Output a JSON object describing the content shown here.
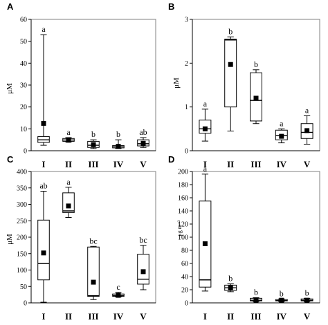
{
  "chart_data": [
    {
      "type": "boxplot",
      "panel": "A",
      "ylabel": "μM",
      "ylim": [
        0,
        60
      ],
      "yticks": [
        0,
        10,
        20,
        30,
        40,
        50,
        60
      ],
      "categories": [
        "I",
        "II",
        "III",
        "IV",
        "V"
      ],
      "boxes": [
        {
          "whisker_low": 2.5,
          "q1": 3.8,
          "median": 5.0,
          "q3": 6.5,
          "whisker_high": 53,
          "mean": 12.5,
          "letter": "a"
        },
        {
          "whisker_low": 4.0,
          "q1": 4.3,
          "median": 4.9,
          "q3": 5.6,
          "whisker_high": 6.0,
          "mean": 4.8,
          "letter": "a"
        },
        {
          "whisker_low": 1.0,
          "q1": 1.5,
          "median": 2.5,
          "q3": 4.3,
          "whisker_high": 5.0,
          "mean": 2.8,
          "letter": "b"
        },
        {
          "whisker_low": 1.0,
          "q1": 1.3,
          "median": 1.8,
          "q3": 2.4,
          "whisker_high": 5.0,
          "mean": 2.0,
          "letter": "b"
        },
        {
          "whisker_low": 1.5,
          "q1": 2.2,
          "median": 3.2,
          "q3": 5.0,
          "whisker_high": 6.0,
          "mean": 3.4,
          "letter": "ab"
        }
      ]
    },
    {
      "type": "boxplot",
      "panel": "B",
      "ylabel": "μM",
      "ylim": [
        0,
        3
      ],
      "yticks": [
        0,
        1,
        2,
        3
      ],
      "categories": [
        "I",
        "II",
        "III",
        "IV",
        "V"
      ],
      "boxes": [
        {
          "whisker_low": 0.22,
          "q1": 0.4,
          "median": 0.5,
          "q3": 0.7,
          "whisker_high": 0.95,
          "mean": 0.5,
          "letter": "a"
        },
        {
          "whisker_low": 0.45,
          "q1": 1.0,
          "median": 2.53,
          "q3": 2.55,
          "whisker_high": 2.6,
          "mean": 1.97,
          "letter": "b"
        },
        {
          "whisker_low": 0.62,
          "q1": 0.68,
          "median": 1.15,
          "q3": 1.78,
          "whisker_high": 1.85,
          "mean": 1.2,
          "letter": "b"
        },
        {
          "whisker_low": 0.18,
          "q1": 0.25,
          "median": 0.35,
          "q3": 0.47,
          "whisker_high": 0.5,
          "mean": 0.33,
          "letter": "a"
        },
        {
          "whisker_low": 0.15,
          "q1": 0.28,
          "median": 0.42,
          "q3": 0.62,
          "whisker_high": 0.8,
          "mean": 0.46,
          "letter": "a"
        }
      ]
    },
    {
      "type": "boxplot",
      "panel": "C",
      "ylabel": "μM",
      "ylim": [
        0,
        400
      ],
      "yticks": [
        0,
        50,
        100,
        150,
        200,
        250,
        300,
        350,
        400
      ],
      "categories": [
        "I",
        "II",
        "III",
        "IV",
        "V"
      ],
      "boxes": [
        {
          "whisker_low": 2,
          "q1": 70,
          "median": 120,
          "q3": 252,
          "whisker_high": 340,
          "mean": 152,
          "letter": "ab"
        },
        {
          "whisker_low": 260,
          "q1": 275,
          "median": 280,
          "q3": 335,
          "whisker_high": 352,
          "mean": 295,
          "letter": "a"
        },
        {
          "whisker_low": 10,
          "q1": 20,
          "median": 22,
          "q3": 170,
          "whisker_high": 172,
          "mean": 63,
          "letter": "bc"
        },
        {
          "whisker_low": 18,
          "q1": 20,
          "median": 22,
          "q3": 27,
          "whisker_high": 32,
          "mean": 23,
          "letter": "c"
        },
        {
          "whisker_low": 40,
          "q1": 57,
          "median": 72,
          "q3": 148,
          "whisker_high": 175,
          "mean": 95,
          "letter": "bc"
        }
      ]
    },
    {
      "type": "boxplot",
      "panel": "D",
      "ylabel": "μg m⁻³",
      "ylim": [
        0,
        200
      ],
      "yticks": [
        0,
        20,
        40,
        60,
        80,
        100,
        120,
        140,
        160,
        180,
        200
      ],
      "categories": [
        "I",
        "II",
        "III",
        "IV",
        "V"
      ],
      "boxes": [
        {
          "whisker_low": 18,
          "q1": 24,
          "median": 35,
          "q3": 155,
          "whisker_high": 196,
          "mean": 90,
          "letter": "a"
        },
        {
          "whisker_low": 17,
          "q1": 19,
          "median": 23,
          "q3": 27,
          "whisker_high": 29,
          "mean": 23,
          "letter": "b"
        },
        {
          "whisker_low": 2,
          "q1": 3,
          "median": 4,
          "q3": 7,
          "whisker_high": 8,
          "mean": 4,
          "letter": "b"
        },
        {
          "whisker_low": 2,
          "q1": 3,
          "median": 3.5,
          "q3": 5,
          "whisker_high": 6,
          "mean": 4,
          "letter": "b"
        },
        {
          "whisker_low": 2,
          "q1": 3,
          "median": 4,
          "q3": 6,
          "whisker_high": 7,
          "mean": 4,
          "letter": "b"
        }
      ]
    }
  ]
}
